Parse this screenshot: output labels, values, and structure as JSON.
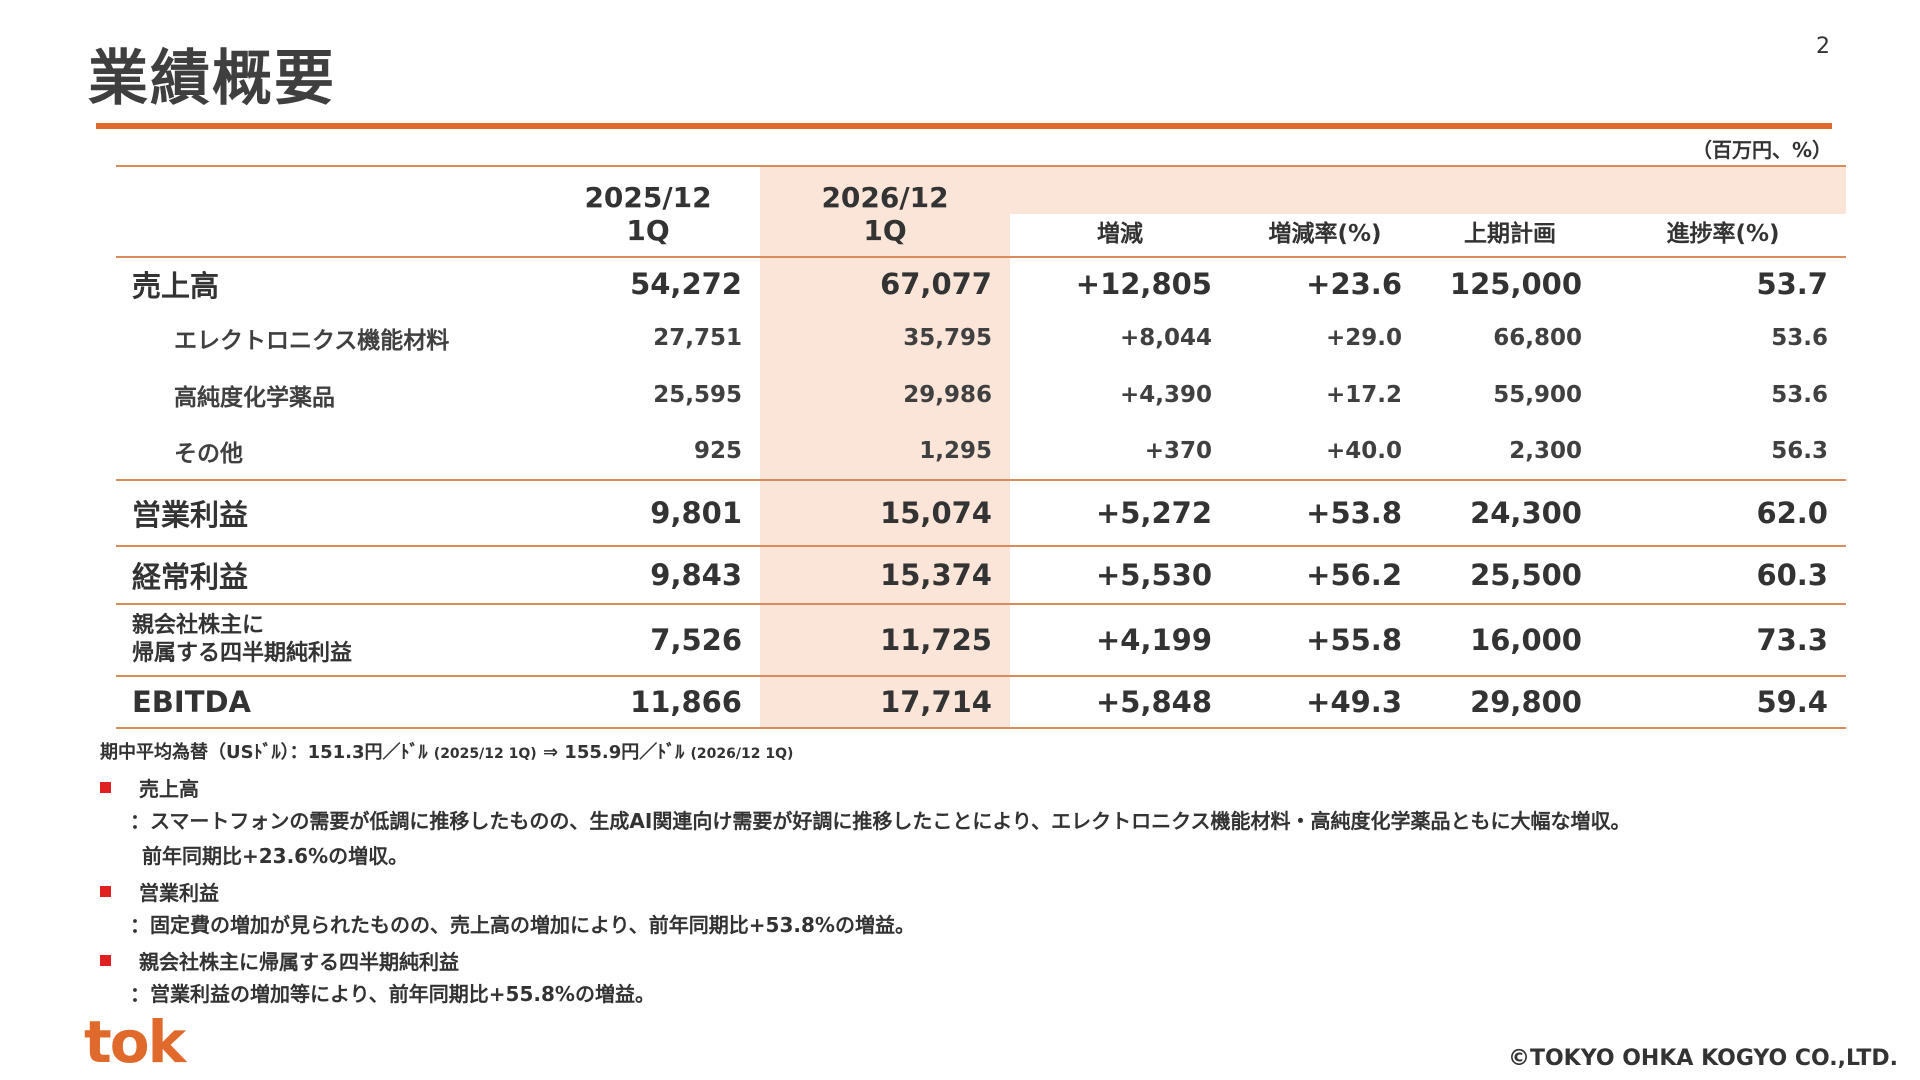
{
  "slide": {
    "title": "業績概要",
    "page_number": "2",
    "unit": "（百万円、%）",
    "accent_color": "#e06a2c",
    "highlight_color": "#fbe5d8"
  },
  "table": {
    "headers": {
      "prev_year": "2025/12",
      "prev_q": "1Q",
      "curr_year": "2026/12",
      "curr_q": "1Q",
      "change": "増減",
      "change_rate": "増減率(%)",
      "plan": "上期計画",
      "progress": "進捗率(%)"
    },
    "rows": [
      {
        "label": "売上高",
        "prev": "54,272",
        "curr": "67,077",
        "change": "+12,805",
        "rate": "+23.6",
        "plan": "125,000",
        "progress": "53.7"
      },
      {
        "label": "エレクトロニクス機能材料",
        "prev": "27,751",
        "curr": "35,795",
        "change": "+8,044",
        "rate": "+29.0",
        "plan": "66,800",
        "progress": "53.6"
      },
      {
        "label": "高純度化学薬品",
        "prev": "25,595",
        "curr": "29,986",
        "change": "+4,390",
        "rate": "+17.2",
        "plan": "55,900",
        "progress": "53.6"
      },
      {
        "label": "その他",
        "prev": "925",
        "curr": "1,295",
        "change": "+370",
        "rate": "+40.0",
        "plan": "2,300",
        "progress": "56.3"
      },
      {
        "label": "営業利益",
        "prev": "9,801",
        "curr": "15,074",
        "change": "+5,272",
        "rate": "+53.8",
        "plan": "24,300",
        "progress": "62.0"
      },
      {
        "label": "経常利益",
        "prev": "9,843",
        "curr": "15,374",
        "change": "+5,530",
        "rate": "+56.2",
        "plan": "25,500",
        "progress": "60.3"
      },
      {
        "label_line1": "親会社株主に",
        "label_line2": "帰属する四半期純利益",
        "prev": "7,526",
        "curr": "11,725",
        "change": "+4,199",
        "rate": "+55.8",
        "plan": "16,000",
        "progress": "73.3"
      },
      {
        "label": "EBITDA",
        "prev": "11,866",
        "curr": "17,714",
        "change": "+5,848",
        "rate": "+49.3",
        "plan": "29,800",
        "progress": "59.4"
      }
    ]
  },
  "fx": {
    "label": "期中平均為替（USﾄﾞﾙ）：151.3円／ﾄﾞﾙ",
    "prev_period": "(2025/12 1Q)",
    "arrow": "⇒ 155.9円／ﾄﾞﾙ",
    "curr_period": "(2026/12 1Q)"
  },
  "comments": [
    {
      "heading": "売上高",
      "lines": [
        "：スマートフォンの需要が低調に推移したものの、生成AI関連向け需要が好調に推移したことにより、エレクトロニクス機能材料・高純度化学薬品ともに大幅な増収。",
        "前年同期比+23.6%の増収。"
      ]
    },
    {
      "heading": "営業利益",
      "lines": [
        "：固定費の増加が見られたものの、売上高の増加により、前年同期比+53.8%の増益。"
      ]
    },
    {
      "heading": "親会社株主に帰属する四半期純利益",
      "lines": [
        "：営業利益の増加等により、前年同期比+55.8%の増益。"
      ]
    }
  ],
  "footer": {
    "logo": "tok",
    "copyright": "©TOKYO OHKA KOGYO CO.,LTD."
  }
}
